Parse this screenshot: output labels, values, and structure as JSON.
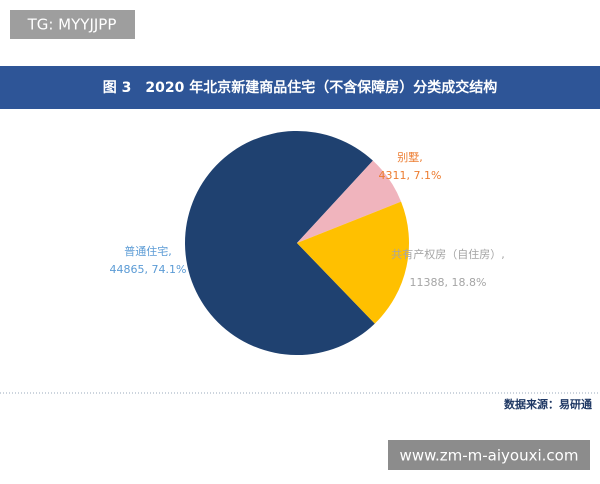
{
  "chart_data": {
    "type": "pie",
    "title": "图 3　2020 年北京新建商品住宅（不含保障房）分类成交结构",
    "categories": [
      "普通住宅,",
      "别墅,",
      "共有产权房（自住房）,"
    ],
    "values": [
      44865,
      4311,
      11388
    ],
    "value_labels": [
      "44865, 74.1%",
      "4311, 7.1%",
      "11388, 18.8%"
    ],
    "colors": [
      "#1f4170",
      "#f0b4bd",
      "#ffc000"
    ],
    "label_colors": [
      "#5b9bd5",
      "#ed7d31",
      "#a5a5a5"
    ],
    "source": "数据来源：易研通"
  },
  "watermark_top": "TG: MYYJJPP",
  "watermark_bottom": "www.zm-m-aiyouxi.com"
}
